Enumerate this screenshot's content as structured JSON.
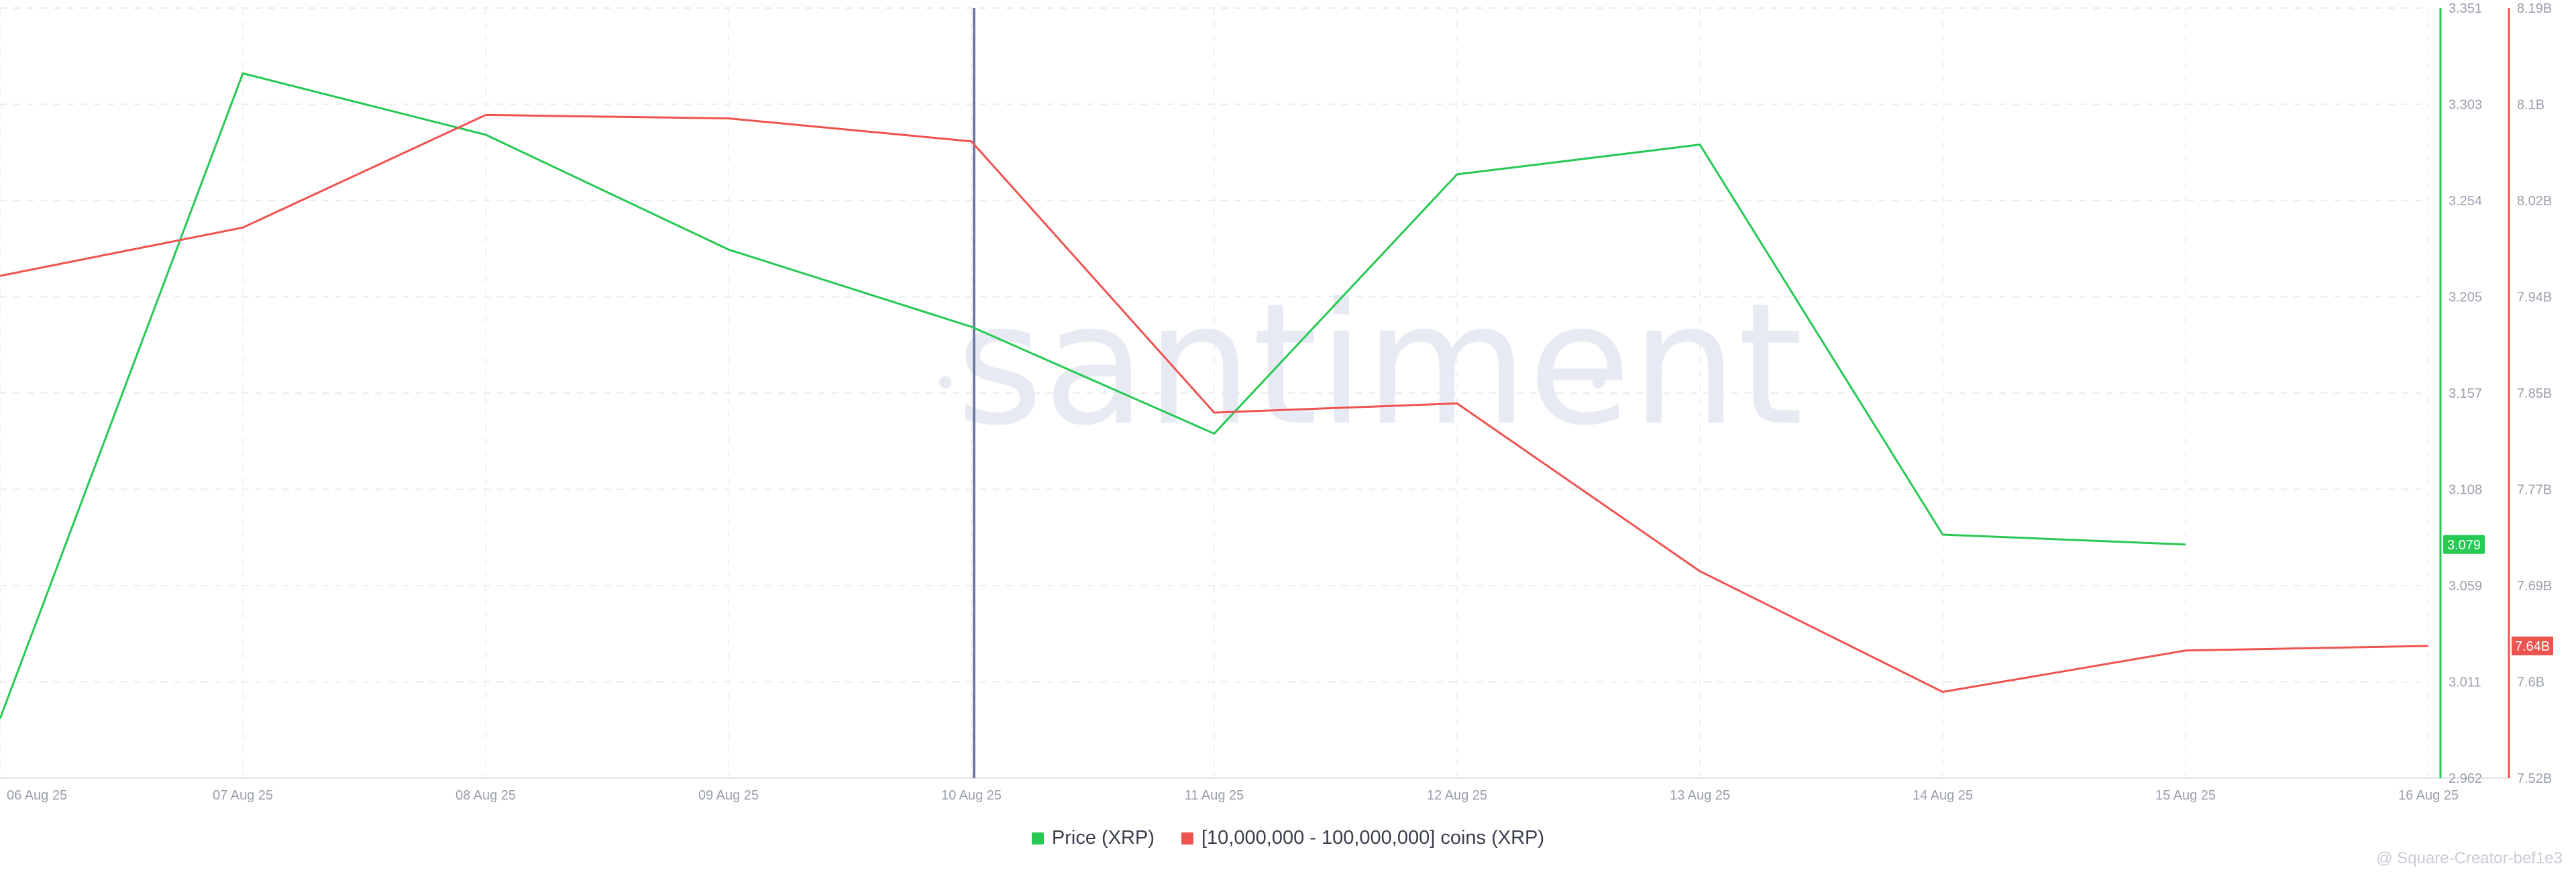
{
  "chart_data": {
    "type": "line",
    "title": "",
    "xlabel": "",
    "ylabel": "",
    "grid": true,
    "legend_position": "bottom-center",
    "watermark": "santiment",
    "x": [
      "06 Aug 25",
      "07 Aug 25",
      "08 Aug 25",
      "09 Aug 25",
      "10 Aug 25",
      "11 Aug 25",
      "12 Aug 25",
      "13 Aug 25",
      "14 Aug 25",
      "15 Aug 25",
      "16 Aug 25"
    ],
    "highlighted_x": "10 Aug 25",
    "axes": {
      "y_left": {
        "ticks": [
          "3.351",
          "3.303",
          "3.254",
          "3.205",
          "3.157",
          "3.108",
          "3.059",
          "3.011",
          "2.962"
        ],
        "range": [
          2.962,
          3.351
        ],
        "current_label": "3.079",
        "color": "#26c953"
      },
      "y_right": {
        "ticks": [
          "8.19B",
          "8.1B",
          "8.02B",
          "7.94B",
          "7.85B",
          "7.77B",
          "7.69B",
          "7.6B",
          "7.52B"
        ],
        "range": [
          7.52,
          8.19
        ],
        "current_label": "7.64B",
        "color": "#ef5350"
      }
    },
    "series": [
      {
        "name": "Price (XRP)",
        "color": "#26c953",
        "axis": "left",
        "values": [
          2.992,
          3.318,
          3.287,
          3.229,
          3.19,
          3.136,
          3.267,
          3.282,
          3.085,
          3.08,
          null
        ]
      },
      {
        "name": "[10,000,000 - 100,000,000] coins (XRP)",
        "color": "#ef5350",
        "axis": "right",
        "values": [
          7.957,
          7.999,
          8.097,
          8.094,
          8.074,
          7.838,
          7.846,
          7.7,
          7.595,
          7.631,
          7.635
        ]
      }
    ]
  },
  "credit": "@ Square-Creator-bef1e3"
}
